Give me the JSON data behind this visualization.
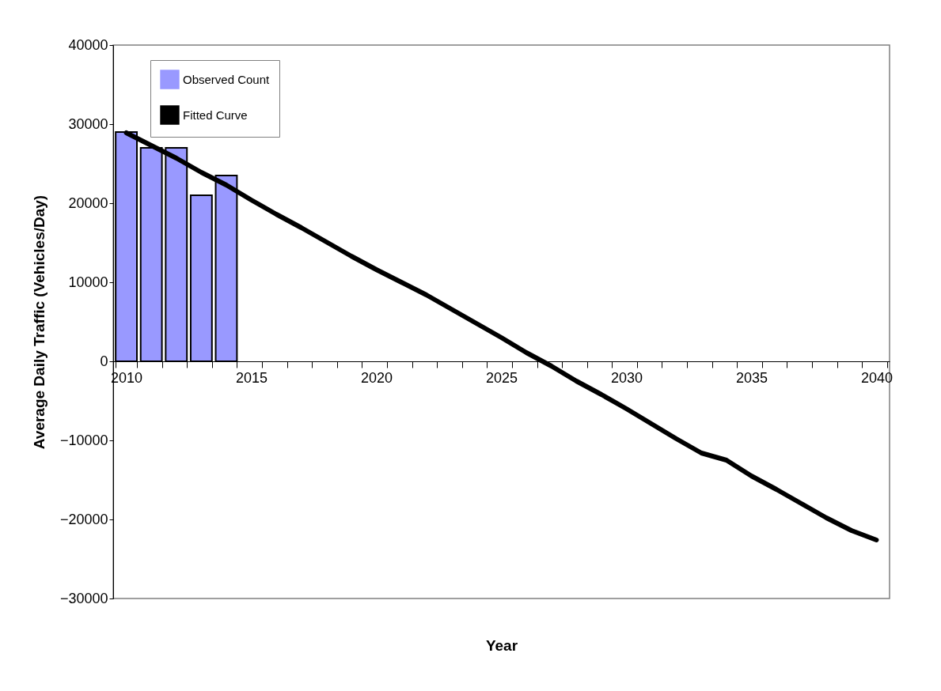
{
  "chart_data": {
    "type": "bar",
    "xlabel": "Year",
    "ylabel": "Average Daily Traffic (Vehicles/Day)",
    "categories": [
      "2010",
      null,
      null,
      null,
      null,
      "2015",
      null,
      null,
      null,
      null,
      "2020",
      null,
      null,
      null,
      null,
      "2025",
      null,
      null,
      null,
      null,
      "2030",
      null,
      null,
      null,
      null,
      "2035",
      null,
      null,
      null,
      null,
      "2040"
    ],
    "series": [
      {
        "name": "Observed Count",
        "color": "#9999ff",
        "values": [
          29000,
          27000,
          27000,
          21000,
          23500,
          null,
          null,
          null,
          null,
          null,
          null,
          null,
          null,
          null,
          null,
          null,
          null,
          null,
          null,
          null,
          null,
          null,
          null,
          null,
          null,
          null,
          null,
          null,
          null,
          null,
          null
        ]
      },
      {
        "name": "Fitted Curve",
        "type": "line",
        "color": "#000000",
        "values": [
          28900,
          27300,
          25700,
          23900,
          22300,
          20400,
          18600,
          16900,
          15100,
          13300,
          11600,
          10000,
          8400,
          6600,
          4800,
          3000,
          1100,
          -600,
          -2500,
          -4200,
          -6000,
          -7900,
          -9800,
          -11600,
          -12500,
          -14500,
          -16200,
          -18000,
          -19800,
          -21400,
          -22600
        ]
      }
    ],
    "ylim": [
      -30000,
      40000
    ],
    "yticks": [
      -30000,
      -20000,
      -10000,
      0,
      10000,
      20000,
      30000,
      40000
    ],
    "grid": false,
    "legend": "top left",
    "marker": "none",
    "line_style": "solid"
  }
}
